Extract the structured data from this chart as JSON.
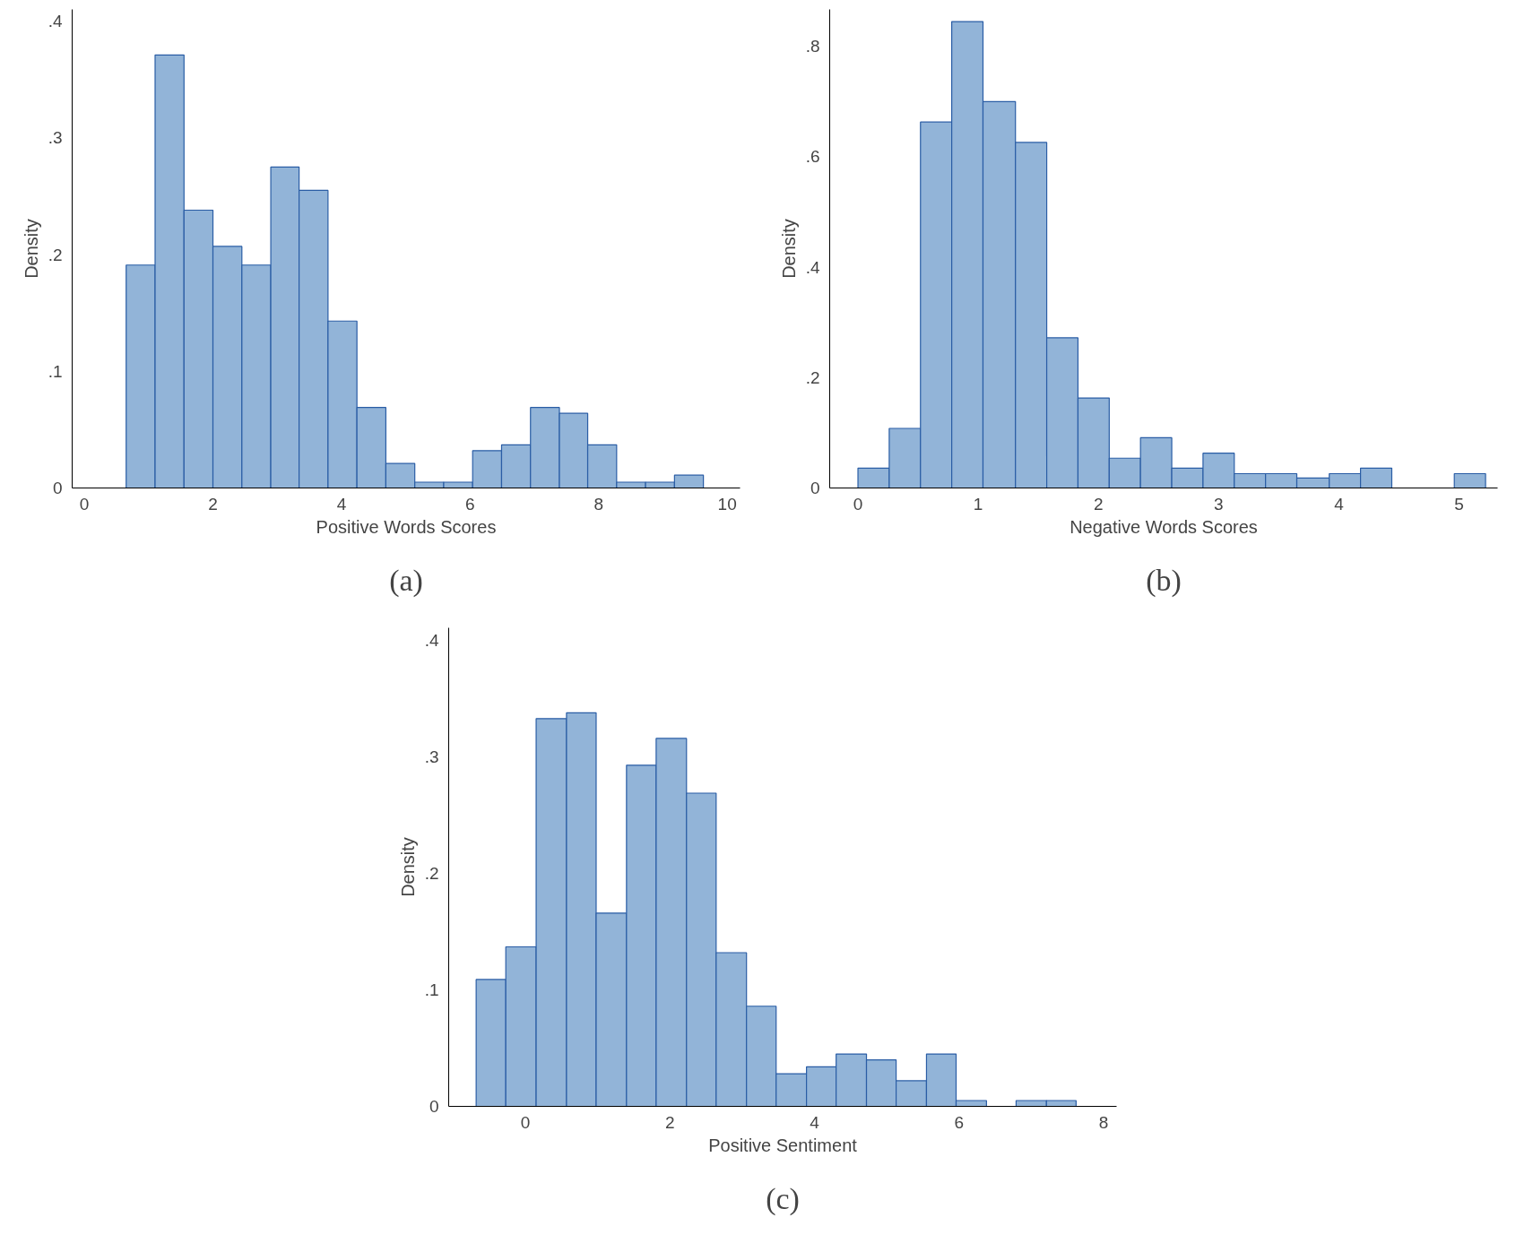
{
  "chart_data": [
    {
      "type": "histogram",
      "xlabel": "Positive Words Scores",
      "ylabel": "Density",
      "color": "#92b4d8",
      "annotations": [
        "(a)"
      ],
      "bins": [
        0.65,
        1.1,
        1.55,
        2.0,
        2.45,
        2.9,
        3.34,
        3.79,
        4.24,
        4.69,
        5.14,
        5.59,
        6.04,
        6.49,
        6.94,
        7.39,
        7.83,
        8.28,
        8.73,
        9.18,
        9.63
      ],
      "values": [
        0.191,
        0.371,
        0.238,
        0.207,
        0.191,
        0.275,
        0.255,
        0.143,
        0.069,
        0.021,
        0.005,
        0.005,
        0.032,
        0.037,
        0.069,
        0.064,
        0.037,
        0.005,
        0.005,
        0.011
      ],
      "xlim": [
        -0.19,
        10.2
      ],
      "ylim": [
        0,
        0.41
      ],
      "xticks": [
        0,
        2,
        4,
        6,
        8,
        10
      ],
      "yticks": [
        {
          "value": 0,
          "label": "0"
        },
        {
          "value": 0.1,
          "label": ".1"
        },
        {
          "value": 0.2,
          "label": ".2"
        },
        {
          "value": 0.3,
          "label": ".3"
        },
        {
          "value": 0.4,
          "label": ".4"
        }
      ]
    },
    {
      "type": "histogram",
      "xlabel": "Negative Words Scores",
      "ylabel": "Density",
      "color": "#92b4d8",
      "annotations": [
        "(b)"
      ],
      "bins": [
        0,
        0.26,
        0.52,
        0.78,
        1.04,
        1.31,
        1.57,
        1.83,
        2.09,
        2.35,
        2.61,
        2.87,
        3.13,
        3.39,
        3.65,
        3.92,
        4.18,
        4.44,
        4.96,
        5.22
      ],
      "values": [
        0.036,
        0.108,
        0.663,
        0.845,
        0.7,
        0.626,
        0.272,
        0.163,
        0.054,
        0.091,
        0.036,
        0.063,
        0.026,
        0.026,
        0.018,
        0.026,
        0.036,
        0,
        0.026
      ],
      "xlim": [
        -0.235,
        5.32
      ],
      "ylim": [
        0,
        0.867
      ],
      "xticks": [
        0,
        1,
        2,
        3,
        4,
        5
      ],
      "yticks": [
        {
          "value": 0,
          "label": "0"
        },
        {
          "value": 0.2,
          "label": ".2"
        },
        {
          "value": 0.4,
          "label": ".4"
        },
        {
          "value": 0.6,
          "label": ".6"
        },
        {
          "value": 0.8,
          "label": ".8"
        }
      ]
    },
    {
      "type": "histogram",
      "xlabel": "Positive Sentiment",
      "ylabel": "Density",
      "color": "#92b4d8",
      "annotations": [
        "(c)"
      ],
      "bins": [
        -0.68,
        -0.27,
        0.15,
        0.57,
        0.98,
        1.4,
        1.81,
        2.23,
        2.64,
        3.06,
        3.47,
        3.89,
        4.3,
        4.72,
        5.13,
        5.55,
        5.96,
        6.38,
        6.79,
        7.21,
        7.62
      ],
      "values": [
        0.109,
        0.137,
        0.333,
        0.338,
        0.166,
        0.293,
        0.316,
        0.269,
        0.132,
        0.086,
        0.028,
        0.034,
        0.045,
        0.04,
        0.022,
        0.045,
        0.005,
        0,
        0.005,
        0.005
      ],
      "xlim": [
        -1.06,
        8.18
      ],
      "ylim": [
        0,
        0.411
      ],
      "xticks": [
        0,
        2,
        4,
        6,
        8
      ],
      "yticks": [
        {
          "value": 0,
          "label": "0"
        },
        {
          "value": 0.1,
          "label": ".1"
        },
        {
          "value": 0.2,
          "label": ".2"
        },
        {
          "value": 0.3,
          "label": ".3"
        },
        {
          "value": 0.4,
          "label": ".4"
        }
      ]
    }
  ]
}
